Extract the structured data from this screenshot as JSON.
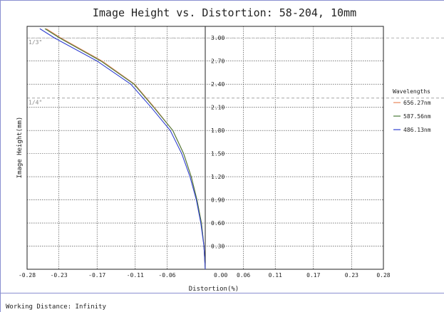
{
  "chart_data": {
    "type": "line",
    "title": "Image Height vs. Distortion: 58-204, 10mm",
    "xlabel": "Distortion(%)",
    "ylabel": "Image Height(mm)",
    "xlim": [
      -0.28,
      0.28
    ],
    "ylim": [
      0,
      3.15
    ],
    "x_tick_labels": [
      "-0.28",
      "-0.23",
      "-0.17",
      "-0.11",
      "-0.06",
      "0.00",
      "0.06",
      "0.11",
      "0.17",
      "0.23",
      "0.28"
    ],
    "x_tick_values": [
      -0.28,
      -0.23,
      -0.17,
      -0.11,
      -0.06,
      0.0,
      0.06,
      0.11,
      0.17,
      0.23,
      0.28
    ],
    "y_tick_labels": [
      "0.30",
      "0.60",
      "0.90",
      "1.20",
      "1.50",
      "1.80",
      "2.10",
      "2.40",
      "2.70",
      "3.00"
    ],
    "y_tick_values": [
      0.3,
      0.6,
      0.9,
      1.2,
      1.5,
      1.8,
      2.1,
      2.4,
      2.7,
      3.0
    ],
    "grid": true,
    "legend": {
      "title": "Wavelengths",
      "position": "right"
    },
    "reference_lines": [
      {
        "label": "1/3\"",
        "y": 3.0,
        "color": "#999999"
      },
      {
        "label": "1/4\"",
        "y": 2.22,
        "color": "#999999"
      }
    ],
    "series": [
      {
        "name": "656.27nm",
        "color": "#e8875a",
        "points": [
          [
            0.0,
            0.0
          ],
          [
            -0.002,
            0.3
          ],
          [
            -0.006,
            0.6
          ],
          [
            -0.013,
            0.9
          ],
          [
            -0.022,
            1.2
          ],
          [
            -0.034,
            1.5
          ],
          [
            -0.051,
            1.8
          ],
          [
            -0.08,
            2.1
          ],
          [
            -0.111,
            2.4
          ],
          [
            -0.162,
            2.7
          ],
          [
            -0.227,
            3.0
          ],
          [
            -0.25,
            3.12
          ]
        ]
      },
      {
        "name": "587.56nm",
        "color": "#4a7a3a",
        "points": [
          [
            0.0,
            0.0
          ],
          [
            -0.002,
            0.3
          ],
          [
            -0.006,
            0.6
          ],
          [
            -0.013,
            0.9
          ],
          [
            -0.022,
            1.2
          ],
          [
            -0.034,
            1.5
          ],
          [
            -0.051,
            1.8
          ],
          [
            -0.081,
            2.1
          ],
          [
            -0.112,
            2.4
          ],
          [
            -0.164,
            2.7
          ],
          [
            -0.229,
            3.0
          ],
          [
            -0.252,
            3.12
          ]
        ]
      },
      {
        "name": "486.13nm",
        "color": "#2f3fd0",
        "points": [
          [
            0.0,
            0.0
          ],
          [
            -0.002,
            0.3
          ],
          [
            -0.007,
            0.6
          ],
          [
            -0.014,
            0.9
          ],
          [
            -0.024,
            1.2
          ],
          [
            -0.037,
            1.5
          ],
          [
            -0.055,
            1.8
          ],
          [
            -0.085,
            2.1
          ],
          [
            -0.117,
            2.4
          ],
          [
            -0.17,
            2.7
          ],
          [
            -0.237,
            3.0
          ],
          [
            -0.26,
            3.12
          ]
        ]
      }
    ]
  },
  "footer": {
    "working_distance": "Working Distance: Infinity"
  }
}
